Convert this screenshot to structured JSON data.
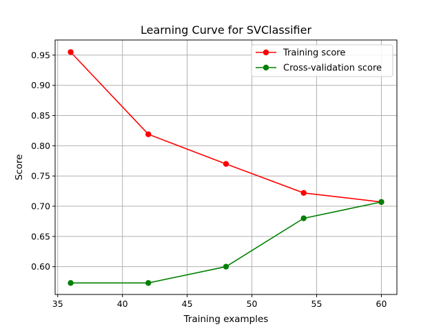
{
  "chart_data": {
    "type": "line",
    "title": "Learning Curve for SVClassifier",
    "xlabel": "Training examples",
    "ylabel": "Score",
    "xlim": [
      34.8,
      61.2
    ],
    "ylim": [
      0.554,
      0.975
    ],
    "xticks": [
      35,
      40,
      45,
      50,
      55,
      60
    ],
    "yticks": [
      0.6,
      0.65,
      0.7,
      0.75,
      0.8,
      0.85,
      0.9,
      0.95
    ],
    "xtick_labels": [
      "35",
      "40",
      "45",
      "50",
      "55",
      "60"
    ],
    "ytick_labels": [
      "0.60",
      "0.65",
      "0.70",
      "0.75",
      "0.80",
      "0.85",
      "0.90",
      "0.95"
    ],
    "grid": true,
    "legend_position": "top-right",
    "x": [
      36,
      42,
      48,
      54,
      60
    ],
    "series": [
      {
        "name": "Training score",
        "color": "#ff0000",
        "values": [
          0.955,
          0.819,
          0.77,
          0.722,
          0.707
        ]
      },
      {
        "name": "Cross-validation score",
        "color": "#008000",
        "values": [
          0.573,
          0.573,
          0.6,
          0.68,
          0.707
        ]
      }
    ]
  }
}
